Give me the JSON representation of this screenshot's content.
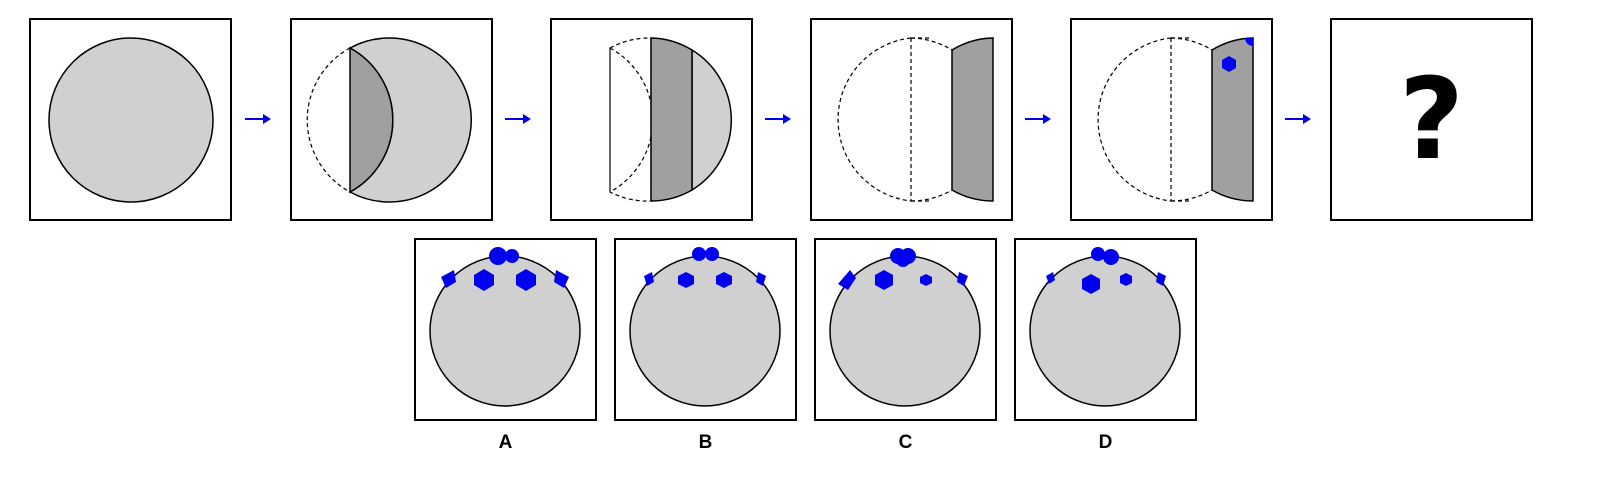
{
  "puzzle": {
    "question_mark": "?",
    "options": [
      {
        "label": "A"
      },
      {
        "label": "B"
      },
      {
        "label": "C"
      },
      {
        "label": "D"
      }
    ]
  },
  "colors": {
    "light_gray": "#d0d0d0",
    "dark_gray": "#a0a0a0",
    "blue": "#0000ee",
    "outline": "#000000"
  }
}
